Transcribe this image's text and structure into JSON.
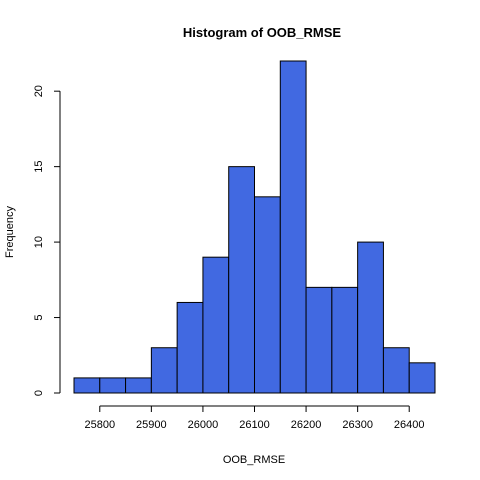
{
  "chart_data": {
    "type": "bar",
    "title": "Histogram of OOB_RMSE",
    "xlabel": "OOB_RMSE",
    "ylabel": "Frequency",
    "bins": [
      {
        "start": 25750,
        "end": 25800,
        "count": 1
      },
      {
        "start": 25800,
        "end": 25850,
        "count": 1
      },
      {
        "start": 25850,
        "end": 25900,
        "count": 1
      },
      {
        "start": 25900,
        "end": 25950,
        "count": 3
      },
      {
        "start": 25950,
        "end": 26000,
        "count": 6
      },
      {
        "start": 26000,
        "end": 26050,
        "count": 9
      },
      {
        "start": 26050,
        "end": 26100,
        "count": 15
      },
      {
        "start": 26100,
        "end": 26150,
        "count": 13
      },
      {
        "start": 26150,
        "end": 26200,
        "count": 22
      },
      {
        "start": 26200,
        "end": 26250,
        "count": 7
      },
      {
        "start": 26250,
        "end": 26300,
        "count": 7
      },
      {
        "start": 26300,
        "end": 26350,
        "count": 10
      },
      {
        "start": 26350,
        "end": 26400,
        "count": 3
      },
      {
        "start": 26400,
        "end": 26450,
        "count": 2
      }
    ],
    "xticks": [
      25800,
      25900,
      26000,
      26100,
      26200,
      26300,
      26400
    ],
    "yticks": [
      0,
      5,
      10,
      15,
      20
    ],
    "xlim": [
      25750,
      26450
    ],
    "ylim": [
      0,
      22
    ],
    "grid": false,
    "bar_color": "#4169E1",
    "edge_color": "#000000"
  }
}
